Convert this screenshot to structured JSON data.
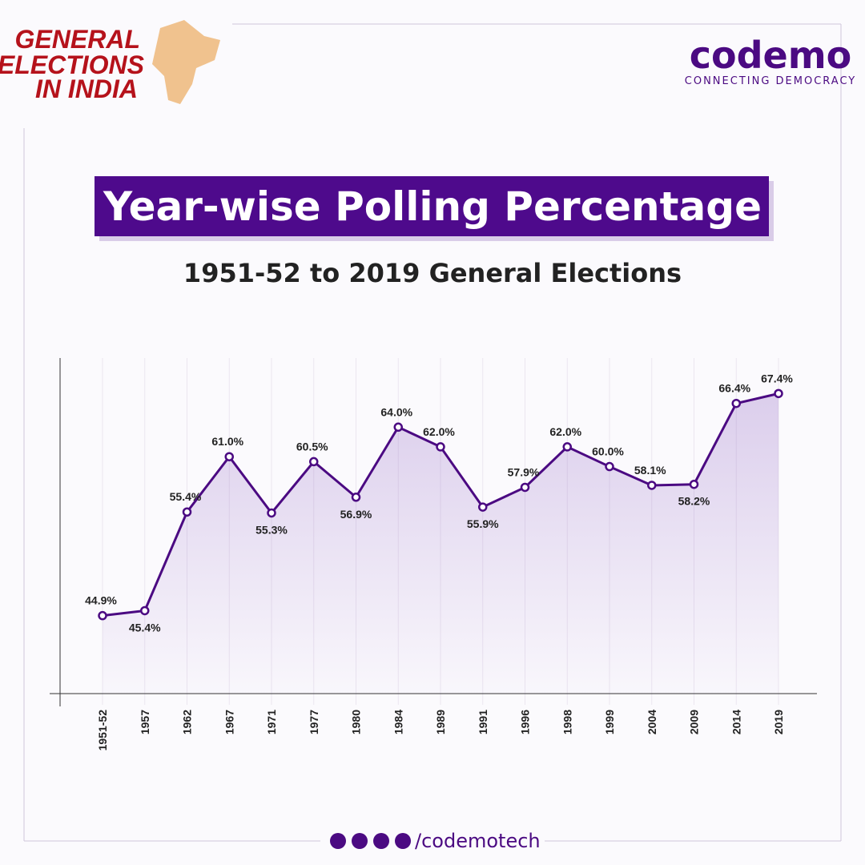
{
  "header": {
    "badge": [
      "GENERAL",
      "ELECTIONS",
      "IN INDIA"
    ],
    "logo": "codemo",
    "tagline": "CONNECTING DEMOCRACY"
  },
  "chart_data": {
    "type": "line",
    "title": "Year-wise Polling Percentage",
    "subtitle": "1951-52 to 2019 General Elections",
    "categories": [
      "1951-52",
      "1957",
      "1962",
      "1967",
      "1971",
      "1977",
      "1980",
      "1984",
      "1989",
      "1991",
      "1996",
      "1998",
      "1999",
      "2004",
      "2009",
      "2014",
      "2019"
    ],
    "values": [
      44.9,
      45.4,
      55.4,
      61.0,
      55.3,
      60.5,
      56.9,
      64.0,
      62.0,
      55.9,
      57.9,
      62.0,
      60.0,
      58.1,
      58.2,
      66.4,
      67.4
    ],
    "value_labels": [
      "44.9%",
      "45.4%",
      "55.4%",
      "61.0%",
      "55.3%",
      "60.5%",
      "56.9%",
      "64.0%",
      "62.0%",
      "55.9%",
      "57.9%",
      "62.0%",
      "60.0%",
      "58.1%",
      "58.2%",
      "66.4%",
      "67.4%"
    ],
    "color": "#4b0a82",
    "ylim": [
      37,
      71
    ],
    "grid": true
  },
  "footer": {
    "handle": "/codemotech"
  }
}
